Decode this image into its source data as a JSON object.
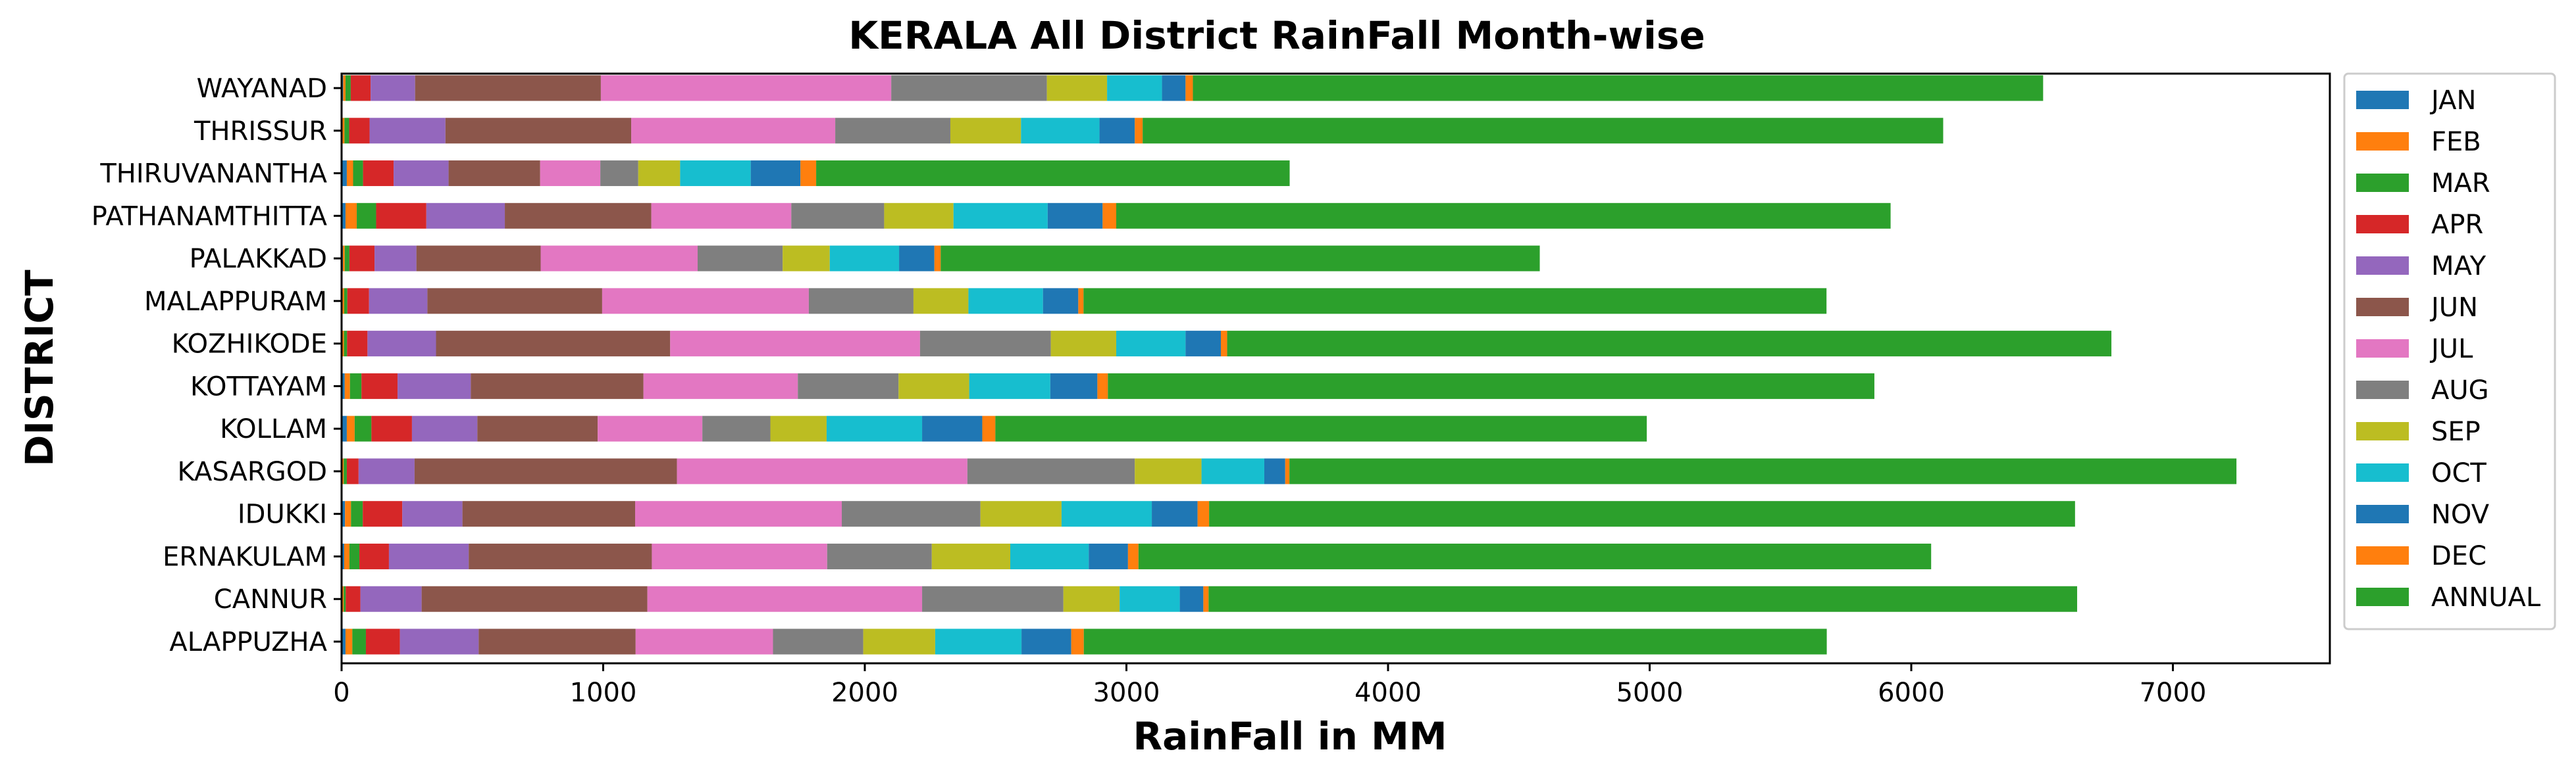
{
  "chart_data": {
    "type": "bar",
    "orientation": "horizontal",
    "stacked": true,
    "title": "KERALA All District RainFall Month-wise",
    "xlabel": "RainFall in MM",
    "ylabel": "DISTRICT",
    "xlim": [
      0,
      7600
    ],
    "xticks": [
      0,
      1000,
      2000,
      3000,
      4000,
      5000,
      6000,
      7000
    ],
    "grid": false,
    "legend_position": "right-outside",
    "categories": [
      "ALAPPUZHA",
      "CANNUR",
      "ERNAKULAM",
      "IDUKKI",
      "KASARGOD",
      "KOLLAM",
      "KOTTAYAM",
      "KOZHIKODE",
      "MALAPPURAM",
      "PALAKKAD",
      "PATHANAMTHITTA",
      "THIRUVANANTHA",
      "THRISSUR",
      "WAYANAD"
    ],
    "series": [
      {
        "name": "JAN",
        "color": "#1f77b4",
        "values": [
          15,
          3,
          10,
          13,
          2,
          20,
          12,
          3,
          4,
          5,
          15,
          20,
          4,
          6
        ]
      },
      {
        "name": "FEB",
        "color": "#ff7f0e",
        "values": [
          26,
          5,
          20,
          23,
          6,
          30,
          20,
          6,
          6,
          7,
          43,
          24,
          7,
          9
        ]
      },
      {
        "name": "MAR",
        "color": "#2ca02c",
        "values": [
          52,
          8,
          38,
          45,
          12,
          64,
          44,
          12,
          12,
          18,
          74,
          38,
          18,
          20
        ]
      },
      {
        "name": "APR",
        "color": "#d62728",
        "values": [
          130,
          56,
          113,
          151,
          45,
          155,
          138,
          78,
          83,
          96,
          192,
          117,
          78,
          76
        ]
      },
      {
        "name": "MAY",
        "color": "#9467bd",
        "values": [
          301,
          234,
          305,
          230,
          214,
          250,
          280,
          262,
          223,
          160,
          300,
          210,
          290,
          170
        ]
      },
      {
        "name": "JUN",
        "color": "#8c564b",
        "values": [
          600,
          863,
          700,
          660,
          1003,
          460,
          660,
          895,
          668,
          475,
          560,
          350,
          710,
          710
        ]
      },
      {
        "name": "JUL",
        "color": "#e377c2",
        "values": [
          525,
          1050,
          670,
          790,
          1110,
          400,
          590,
          955,
          790,
          600,
          535,
          230,
          780,
          1110
        ]
      },
      {
        "name": "AUG",
        "color": "#7f7f7f",
        "values": [
          345,
          540,
          400,
          530,
          640,
          260,
          385,
          500,
          400,
          325,
          355,
          145,
          440,
          595
        ]
      },
      {
        "name": "SEP",
        "color": "#bcbd22",
        "values": [
          275,
          215,
          300,
          310,
          255,
          215,
          270,
          250,
          210,
          180,
          265,
          160,
          270,
          230
        ]
      },
      {
        "name": "OCT",
        "color": "#17becf",
        "values": [
          330,
          230,
          300,
          345,
          240,
          365,
          310,
          265,
          285,
          265,
          360,
          270,
          300,
          210
        ]
      },
      {
        "name": "NOV",
        "color": "#1f77b4",
        "values": [
          190,
          90,
          150,
          175,
          80,
          230,
          180,
          135,
          135,
          135,
          210,
          190,
          135,
          90
        ]
      },
      {
        "name": "DEC",
        "color": "#ff7f0e",
        "values": [
          48,
          20,
          40,
          44,
          16,
          50,
          40,
          24,
          20,
          24,
          52,
          60,
          30,
          28
        ]
      },
      {
        "name": "ANNUAL",
        "color": "#2ca02c",
        "values": [
          2840,
          3320,
          3030,
          3310,
          3620,
          2490,
          2930,
          3380,
          2840,
          2290,
          2960,
          1810,
          3060,
          3250
        ]
      }
    ]
  }
}
